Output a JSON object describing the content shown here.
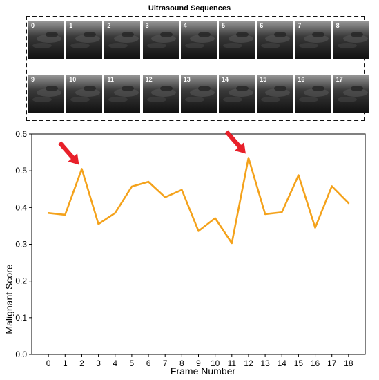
{
  "sequences": {
    "title": "Ultrasound Sequences",
    "frames": [
      "0",
      "1",
      "2",
      "3",
      "4",
      "5",
      "6",
      "7",
      "8",
      "9",
      "10",
      "11",
      "12",
      "13",
      "14",
      "15",
      "16",
      "17"
    ]
  },
  "chart_data": {
    "type": "line",
    "title": "",
    "xlabel": "Frame Number",
    "ylabel": "Malignant Score",
    "x": [
      0,
      1,
      2,
      3,
      4,
      5,
      6,
      7,
      8,
      9,
      10,
      11,
      12,
      13,
      14,
      15,
      16,
      17,
      18
    ],
    "series": [
      {
        "values": [
          0.385,
          0.38,
          0.505,
          0.355,
          0.385,
          0.457,
          0.47,
          0.428,
          0.448,
          0.336,
          0.371,
          0.303,
          0.535,
          0.382,
          0.387,
          0.488,
          0.345,
          0.458,
          0.412
        ]
      }
    ],
    "ylim": [
      0.0,
      0.6
    ],
    "xlim": [
      -1,
      19
    ],
    "y_ticks": [
      0.0,
      0.1,
      0.2,
      0.3,
      0.4,
      0.5,
      0.6
    ],
    "y_tick_labels": [
      "0.0",
      "0.1",
      "0.2",
      "0.3",
      "0.4",
      "0.5",
      "0.6"
    ],
    "x_tick_labels": [
      "0",
      "1",
      "2",
      "3",
      "4",
      "5",
      "6",
      "7",
      "8",
      "9",
      "10",
      "11",
      "12",
      "13",
      "14",
      "15",
      "16",
      "17",
      "18"
    ],
    "grid": false,
    "annotations": [
      {
        "kind": "arrow",
        "target_x": 2
      },
      {
        "kind": "arrow",
        "target_x": 12
      }
    ],
    "colors": {
      "line": "#F4A21B",
      "arrow": "#E8202A"
    }
  }
}
